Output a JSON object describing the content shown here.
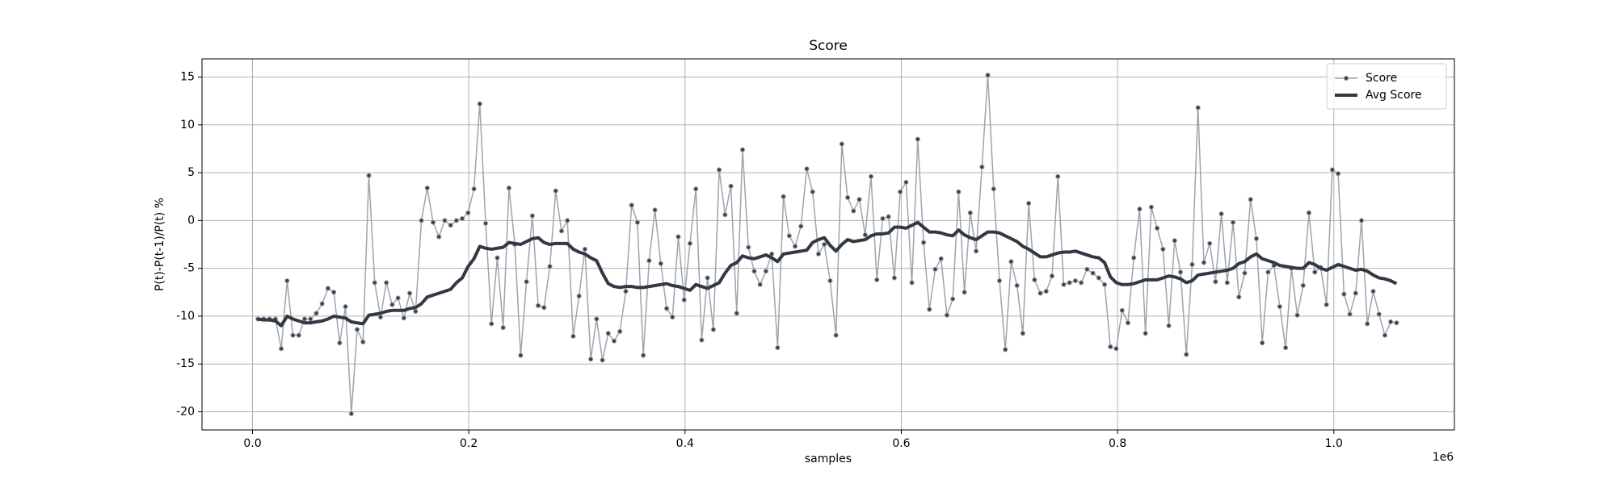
{
  "chart_data": {
    "type": "line",
    "title": "Score",
    "xlabel": "samples",
    "ylabel": "P(t)-P(t-1)/P(t) %",
    "x_offset_label": "1e6",
    "x": [
      5000,
      10400,
      15800,
      21200,
      26600,
      32000,
      37400,
      42800,
      48200,
      53600,
      59000,
      64400,
      69800,
      75200,
      80600,
      86000,
      91400,
      96800,
      102200,
      107600,
      113000,
      118400,
      123800,
      129200,
      134600,
      140000,
      145400,
      150800,
      156200,
      161600,
      167000,
      172400,
      177800,
      183200,
      188600,
      194000,
      199400,
      204800,
      210200,
      215600,
      221000,
      226400,
      231800,
      237200,
      242600,
      248000,
      253400,
      258800,
      264200,
      269600,
      275000,
      280400,
      285800,
      291200,
      296600,
      302000,
      307400,
      312800,
      318200,
      323600,
      329000,
      334400,
      339800,
      345200,
      350600,
      356000,
      361400,
      366800,
      372200,
      377600,
      383000,
      388400,
      393800,
      399200,
      404600,
      410000,
      415400,
      420800,
      426200,
      431600,
      437000,
      442400,
      447800,
      453200,
      458600,
      464000,
      469400,
      474800,
      480200,
      485600,
      491000,
      496400,
      501800,
      507200,
      512600,
      518000,
      523400,
      528800,
      534200,
      539600,
      545000,
      550400,
      555800,
      561200,
      566600,
      572000,
      577400,
      582800,
      588200,
      593600,
      599000,
      604400,
      609800,
      615200,
      620600,
      626000,
      631400,
      636800,
      642200,
      647600,
      653000,
      658400,
      663800,
      669200,
      674600,
      680000,
      685400,
      690800,
      696200,
      701600,
      707000,
      712400,
      717800,
      723200,
      728600,
      734000,
      739400,
      744800,
      750200,
      755600,
      761000,
      766400,
      771800,
      777200,
      782600,
      788000,
      793400,
      798800,
      804200,
      809600,
      815000,
      820400,
      825800,
      831200,
      836600,
      842000,
      847400,
      852800,
      858200,
      863600,
      869000,
      874400,
      879800,
      885200,
      890600,
      896000,
      901400,
      906800,
      912200,
      917600,
      923000,
      928400,
      933800,
      939200,
      944600,
      950000,
      955400,
      960800,
      966200,
      971600,
      977000,
      982400,
      987800,
      993200,
      998600,
      1004000,
      1009400,
      1014800,
      1020200,
      1025600,
      1031000,
      1036400,
      1041800,
      1047200,
      1052600,
      1058000
    ],
    "series": [
      {
        "name": "Score",
        "color": "#9ea3ad",
        "marker_color": "#3b404a",
        "line_width": 1.5,
        "markers": true,
        "values": [
          -10.3,
          -10.3,
          -10.3,
          -10.3,
          -13.4,
          -6.3,
          -12,
          -12,
          -10.3,
          -10.3,
          -9.7,
          -8.7,
          -7.1,
          -7.5,
          -12.8,
          -9,
          -20.2,
          -11.4,
          -12.7,
          4.7,
          -6.5,
          -10.1,
          -6.5,
          -8.8,
          -8.1,
          -10.2,
          -7.6,
          -9.5,
          0,
          3.4,
          -0.2,
          -1.7,
          0,
          -0.5,
          0,
          0.2,
          0.8,
          3.3,
          12.2,
          -0.3,
          -10.8,
          -3.9,
          -11.2,
          3.4,
          -2.5,
          -14.1,
          -6.4,
          0.5,
          -8.9,
          -9.1,
          -4.8,
          3.1,
          -1.1,
          0,
          -12.1,
          -7.9,
          -3,
          -14.5,
          -10.3,
          -14.6,
          -11.8,
          -12.6,
          -11.6,
          -7.4,
          1.6,
          -0.2,
          -14.1,
          -4.2,
          1.1,
          -4.5,
          -9.2,
          -10.1,
          -1.7,
          -8.3,
          -2.4,
          3.3,
          -12.5,
          -6,
          -11.4,
          5.3,
          0.6,
          3.6,
          -9.7,
          7.4,
          -2.8,
          -5.3,
          -6.7,
          -5.3,
          -3.5,
          -13.3,
          2.5,
          -1.6,
          -2.7,
          -0.6,
          5.4,
          3,
          -3.5,
          -2.5,
          -6.3,
          -12,
          8,
          2.4,
          1,
          2.2,
          -1.5,
          4.6,
          -6.2,
          0.2,
          0.4,
          -6,
          3,
          4,
          -6.5,
          8.5,
          -2.3,
          -9.3,
          -5.1,
          -4,
          -9.9,
          -8.2,
          3,
          -7.5,
          0.8,
          -3.2,
          5.6,
          15.2,
          3.3,
          -6.3,
          -13.5,
          -4.3,
          -6.8,
          -11.8,
          1.8,
          -6.2,
          -7.6,
          -7.4,
          -5.8,
          4.6,
          -6.7,
          -6.5,
          -6.3,
          -6.5,
          -5.1,
          -5.5,
          -6,
          -6.7,
          -13.2,
          -13.4,
          -9.4,
          -10.7,
          -3.9,
          1.2,
          -11.8,
          1.4,
          -0.8,
          -3,
          -11,
          -2.1,
          -5.4,
          -14,
          -4.6,
          11.8,
          -4.4,
          -2.4,
          -6.4,
          0.7,
          -6.5,
          -0.2,
          -8,
          -5.5,
          2.2,
          -1.9,
          -12.8,
          -5.4,
          -4.7,
          -9,
          -13.3,
          -5,
          -9.9,
          -6.8,
          0.8,
          -5.4,
          -4.9,
          -8.8,
          5.3,
          4.9,
          -7.7,
          -9.8,
          -7.6,
          0,
          -10.8,
          -7.4,
          -9.8,
          -12,
          -10.6,
          -10.7
        ]
      },
      {
        "name": "Avg Score",
        "color": "#323943",
        "line_width": 4,
        "markers": false,
        "values": [
          -10.3,
          -10.4,
          -10.4,
          -10.5,
          -11,
          -10,
          -10.3,
          -10.5,
          -10.7,
          -10.7,
          -10.6,
          -10.5,
          -10.3,
          -10,
          -10.1,
          -10.2,
          -10.6,
          -10.7,
          -10.8,
          -9.9,
          -9.8,
          -9.7,
          -9.5,
          -9.4,
          -9.4,
          -9.4,
          -9.2,
          -9.1,
          -8.7,
          -8,
          -7.8,
          -7.6,
          -7.4,
          -7.2,
          -6.5,
          -6,
          -4.8,
          -4,
          -2.7,
          -2.9,
          -3,
          -2.9,
          -2.8,
          -2.3,
          -2.4,
          -2.5,
          -2.2,
          -1.9,
          -1.8,
          -2.3,
          -2.5,
          -2.4,
          -2.4,
          -2.4,
          -3,
          -3.3,
          -3.5,
          -3.9,
          -4.2,
          -5.5,
          -6.6,
          -6.9,
          -7,
          -6.9,
          -6.9,
          -7,
          -7,
          -6.9,
          -6.8,
          -6.7,
          -6.6,
          -6.8,
          -6.9,
          -7.1,
          -7.3,
          -6.7,
          -6.9,
          -7.1,
          -6.8,
          -6.5,
          -5.5,
          -4.7,
          -4.4,
          -3.7,
          -3.9,
          -4,
          -3.8,
          -3.6,
          -3.9,
          -4.3,
          -3.5,
          -3.4,
          -3.3,
          -3.2,
          -3.1,
          -2.3,
          -2,
          -1.8,
          -2.6,
          -3.2,
          -2.5,
          -2,
          -2.2,
          -2.1,
          -2,
          -1.6,
          -1.4,
          -1.4,
          -1.3,
          -0.7,
          -0.7,
          -0.8,
          -0.5,
          -0.2,
          -0.7,
          -1.2,
          -1.2,
          -1.3,
          -1.5,
          -1.6,
          -1,
          -1.5,
          -1.8,
          -2,
          -1.6,
          -1.2,
          -1.2,
          -1.3,
          -1.6,
          -1.9,
          -2.2,
          -2.7,
          -3,
          -3.4,
          -3.8,
          -3.8,
          -3.6,
          -3.4,
          -3.3,
          -3.3,
          -3.2,
          -3.4,
          -3.6,
          -3.8,
          -3.9,
          -4.4,
          -5.9,
          -6.5,
          -6.7,
          -6.7,
          -6.6,
          -6.4,
          -6.2,
          -6.2,
          -6.2,
          -6,
          -5.8,
          -5.9,
          -6.1,
          -6.5,
          -6.3,
          -5.7,
          -5.6,
          -5.5,
          -5.4,
          -5.3,
          -5.2,
          -5,
          -4.5,
          -4.3,
          -3.8,
          -3.5,
          -4,
          -4.2,
          -4.4,
          -4.7,
          -4.8,
          -4.9,
          -5,
          -5,
          -4.4,
          -4.6,
          -5,
          -5.2,
          -4.9,
          -4.6,
          -4.8,
          -5,
          -5.2,
          -5.1,
          -5.3,
          -5.7,
          -6,
          -6.1,
          -6.3,
          -6.6
        ]
      }
    ],
    "xlim": [
      -46700,
      1111500
    ],
    "ylim": [
      -21.9,
      16.9
    ],
    "xticks": [
      {
        "value": 0,
        "label": "0.0"
      },
      {
        "value": 200000,
        "label": "0.2"
      },
      {
        "value": 400000,
        "label": "0.4"
      },
      {
        "value": 600000,
        "label": "0.6"
      },
      {
        "value": 800000,
        "label": "0.8"
      },
      {
        "value": 1000000,
        "label": "1.0"
      }
    ],
    "yticks": [
      -20,
      -15,
      -10,
      -5,
      0,
      5,
      10,
      15
    ],
    "grid": true,
    "legend": "upper right"
  }
}
